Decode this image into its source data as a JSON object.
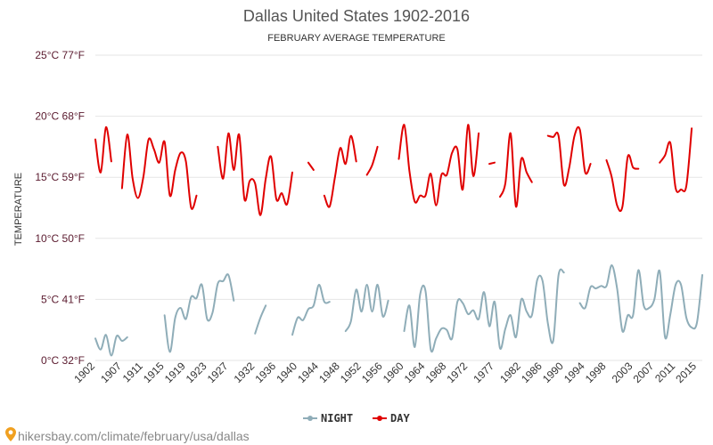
{
  "chart_data": {
    "type": "line",
    "title": "Dallas United States 1902-2016",
    "subtitle": "FEBRUARY AVERAGE TEMPERATURE",
    "ylabel": "TEMPERATURE",
    "ylim": [
      0,
      25
    ],
    "y_ticks": [
      {
        "value": 0,
        "label": "0°C 32°F"
      },
      {
        "value": 5,
        "label": "5°C 41°F"
      },
      {
        "value": 10,
        "label": "10°C 50°F"
      },
      {
        "value": 15,
        "label": "15°C 59°F"
      },
      {
        "value": 20,
        "label": "20°C 68°F"
      },
      {
        "value": 25,
        "label": "25°C 77°F"
      }
    ],
    "xlim": [
      1902,
      2016
    ],
    "x_ticks": [
      1902,
      1907,
      1911,
      1915,
      1919,
      1923,
      1927,
      1932,
      1936,
      1940,
      1944,
      1948,
      1952,
      1956,
      1960,
      1964,
      1968,
      1972,
      1977,
      1982,
      1986,
      1990,
      1994,
      1998,
      2003,
      2007,
      2011,
      2015
    ],
    "grid": true,
    "legend": "bottom-center",
    "series": [
      {
        "name": "NIGHT",
        "color": "#8fadb8",
        "segments": [
          [
            [
              1902,
              1.8
            ],
            [
              1903,
              0.9
            ],
            [
              1904,
              2.1
            ],
            [
              1905,
              0.4
            ],
            [
              1906,
              2.0
            ],
            [
              1907,
              1.6
            ],
            [
              1908,
              1.9
            ]
          ],
          [
            [
              1915,
              3.7
            ],
            [
              1916,
              0.7
            ],
            [
              1917,
              3.5
            ],
            [
              1918,
              4.3
            ],
            [
              1919,
              3.4
            ],
            [
              1920,
              5.2
            ],
            [
              1921,
              5.1
            ],
            [
              1922,
              6.2
            ],
            [
              1923,
              3.4
            ],
            [
              1924,
              3.9
            ],
            [
              1925,
              6.3
            ],
            [
              1926,
              6.5
            ],
            [
              1927,
              7.0
            ],
            [
              1928,
              4.9
            ]
          ],
          [
            [
              1932,
              2.2
            ],
            [
              1933,
              3.5
            ],
            [
              1934,
              4.5
            ]
          ],
          [
            [
              1939,
              2.1
            ],
            [
              1940,
              3.5
            ],
            [
              1941,
              3.3
            ],
            [
              1942,
              4.2
            ],
            [
              1943,
              4.5
            ],
            [
              1944,
              6.2
            ],
            [
              1945,
              4.8
            ],
            [
              1946,
              4.8
            ]
          ],
          [
            [
              1949,
              2.4
            ],
            [
              1950,
              3.2
            ],
            [
              1951,
              5.8
            ],
            [
              1952,
              4.0
            ],
            [
              1953,
              6.2
            ],
            [
              1954,
              4.0
            ],
            [
              1955,
              6.2
            ],
            [
              1956,
              3.6
            ],
            [
              1957,
              4.9
            ]
          ],
          [
            [
              1960,
              2.4
            ],
            [
              1961,
              4.5
            ],
            [
              1962,
              1.1
            ],
            [
              1963,
              5.4
            ],
            [
              1964,
              5.7
            ],
            [
              1965,
              0.9
            ],
            [
              1966,
              1.8
            ],
            [
              1967,
              2.6
            ],
            [
              1968,
              2.5
            ],
            [
              1969,
              1.8
            ],
            [
              1970,
              4.8
            ],
            [
              1971,
              4.7
            ],
            [
              1972,
              3.8
            ],
            [
              1973,
              4.1
            ],
            [
              1974,
              3.4
            ],
            [
              1975,
              5.6
            ],
            [
              1976,
              2.8
            ],
            [
              1977,
              4.8
            ],
            [
              1978,
              1.0
            ],
            [
              1979,
              2.6
            ],
            [
              1980,
              3.7
            ],
            [
              1981,
              1.9
            ],
            [
              1982,
              5.0
            ],
            [
              1983,
              4.0
            ],
            [
              1984,
              3.7
            ],
            [
              1985,
              6.6
            ],
            [
              1986,
              6.5
            ],
            [
              1987,
              3.0
            ],
            [
              1988,
              1.6
            ],
            [
              1989,
              7.0
            ],
            [
              1990,
              7.2
            ]
          ],
          [
            [
              1993,
              4.7
            ],
            [
              1994,
              4.3
            ],
            [
              1995,
              6.0
            ],
            [
              1996,
              5.9
            ],
            [
              1997,
              6.1
            ],
            [
              1998,
              6.1
            ],
            [
              1999,
              7.8
            ],
            [
              2000,
              5.9
            ],
            [
              2001,
              2.4
            ],
            [
              2002,
              3.7
            ],
            [
              2003,
              3.7
            ],
            [
              2004,
              7.4
            ],
            [
              2005,
              4.5
            ],
            [
              2006,
              4.3
            ],
            [
              2007,
              5.0
            ],
            [
              2008,
              7.3
            ],
            [
              2009,
              1.9
            ],
            [
              2010,
              3.8
            ],
            [
              2011,
              6.2
            ],
            [
              2012,
              6.2
            ],
            [
              2013,
              3.5
            ],
            [
              2014,
              2.7
            ],
            [
              2015,
              3.1
            ],
            [
              2016,
              7.0
            ]
          ]
        ]
      },
      {
        "name": "DAY",
        "color": "#e00000",
        "segments": [
          [
            [
              1902,
              18.1
            ],
            [
              1903,
              15.4
            ],
            [
              1904,
              19.1
            ],
            [
              1905,
              16.3
            ]
          ],
          [
            [
              1907,
              14.1
            ],
            [
              1908,
              18.5
            ],
            [
              1909,
              14.9
            ],
            [
              1910,
              13.3
            ],
            [
              1911,
              15.0
            ],
            [
              1912,
              18.1
            ],
            [
              1913,
              17.3
            ],
            [
              1914,
              16.2
            ],
            [
              1915,
              17.9
            ],
            [
              1916,
              13.5
            ],
            [
              1917,
              15.6
            ],
            [
              1918,
              17.0
            ],
            [
              1919,
              16.3
            ],
            [
              1920,
              12.5
            ],
            [
              1921,
              13.5
            ]
          ],
          [
            [
              1925,
              17.5
            ],
            [
              1926,
              14.9
            ],
            [
              1927,
              18.6
            ],
            [
              1928,
              15.6
            ],
            [
              1929,
              18.5
            ],
            [
              1930,
              13.2
            ],
            [
              1931,
              14.7
            ],
            [
              1932,
              14.5
            ],
            [
              1933,
              11.9
            ],
            [
              1934,
              14.9
            ],
            [
              1935,
              16.7
            ],
            [
              1936,
              13.2
            ],
            [
              1937,
              13.7
            ],
            [
              1938,
              12.8
            ],
            [
              1939,
              15.4
            ]
          ],
          [
            [
              1942,
              16.2
            ],
            [
              1943,
              15.6
            ]
          ],
          [
            [
              1945,
              13.5
            ],
            [
              1946,
              12.6
            ],
            [
              1947,
              15.0
            ],
            [
              1948,
              17.4
            ],
            [
              1949,
              16.1
            ],
            [
              1950,
              18.4
            ],
            [
              1951,
              16.3
            ]
          ],
          [
            [
              1953,
              15.2
            ],
            [
              1954,
              16.0
            ],
            [
              1955,
              17.5
            ]
          ],
          [
            [
              1959,
              16.5
            ],
            [
              1960,
              19.3
            ],
            [
              1961,
              15.5
            ],
            [
              1962,
              13.0
            ],
            [
              1963,
              13.5
            ],
            [
              1964,
              13.5
            ],
            [
              1965,
              15.3
            ],
            [
              1966,
              12.7
            ],
            [
              1967,
              15.2
            ],
            [
              1968,
              15.2
            ],
            [
              1969,
              17.0
            ],
            [
              1970,
              17.3
            ],
            [
              1971,
              14.0
            ],
            [
              1972,
              19.3
            ],
            [
              1973,
              15.1
            ],
            [
              1974,
              18.6
            ]
          ],
          [
            [
              1976,
              16.1
            ],
            [
              1977,
              16.2
            ]
          ],
          [
            [
              1978,
              13.4
            ],
            [
              1979,
              14.5
            ],
            [
              1980,
              18.6
            ],
            [
              1981,
              12.6
            ],
            [
              1982,
              16.5
            ],
            [
              1983,
              15.4
            ],
            [
              1984,
              14.6
            ]
          ],
          [
            [
              1987,
              18.4
            ],
            [
              1988,
              18.3
            ],
            [
              1989,
              18.4
            ],
            [
              1990,
              14.4
            ],
            [
              1991,
              15.8
            ],
            [
              1992,
              18.4
            ],
            [
              1993,
              18.9
            ],
            [
              1994,
              15.4
            ],
            [
              1995,
              16.1
            ]
          ],
          [
            [
              1998,
              16.4
            ],
            [
              1999,
              15.0
            ],
            [
              2000,
              12.7
            ],
            [
              2001,
              12.6
            ],
            [
              2002,
              16.7
            ],
            [
              2003,
              15.8
            ],
            [
              2004,
              15.7
            ]
          ],
          [
            [
              2008,
              16.2
            ],
            [
              2009,
              16.8
            ],
            [
              2010,
              17.8
            ],
            [
              2011,
              14.1
            ],
            [
              2012,
              14.0
            ],
            [
              2013,
              14.3
            ],
            [
              2014,
              19.0
            ]
          ]
        ]
      }
    ]
  },
  "footer": {
    "credit": "hikersbay.com/climate/february/usa/dallas"
  }
}
